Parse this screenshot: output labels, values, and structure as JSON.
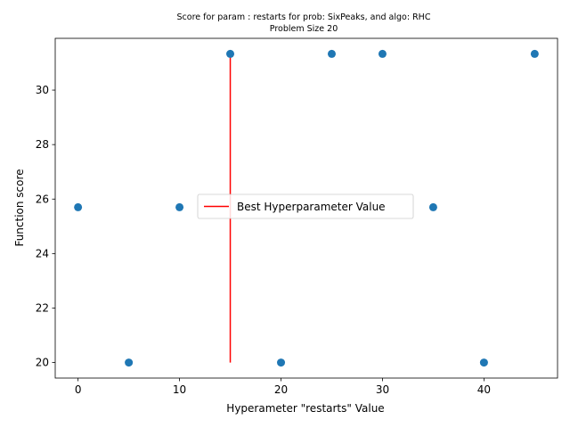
{
  "chart_data": {
    "type": "scatter",
    "title": "Score for param : restarts for prob: SixPeaks, and algo: RHC",
    "subtitle": "Problem Size 20",
    "xlabel": "Hyperameter \"restarts\" Value",
    "ylabel": "Function score",
    "xlim": [
      -2.25,
      47.25
    ],
    "ylim": [
      19.43,
      31.9
    ],
    "xticks": [
      0,
      10,
      20,
      30,
      40
    ],
    "yticks": [
      20,
      22,
      24,
      26,
      28,
      30
    ],
    "grid": false,
    "points": [
      {
        "x": 0,
        "y": 25.7
      },
      {
        "x": 5,
        "y": 20
      },
      {
        "x": 10,
        "y": 25.7
      },
      {
        "x": 15,
        "y": 31.33
      },
      {
        "x": 20,
        "y": 20
      },
      {
        "x": 25,
        "y": 31.33
      },
      {
        "x": 30,
        "y": 31.33
      },
      {
        "x": 35,
        "y": 25.7
      },
      {
        "x": 40,
        "y": 20
      },
      {
        "x": 45,
        "y": 31.33
      }
    ],
    "best_line": {
      "name": "Best Hyperparameter Value",
      "x": 15,
      "y_from": 20,
      "y_to": 31.33
    },
    "legend": {
      "entries": [
        "Best Hyperparameter Value"
      ],
      "placement": "center"
    },
    "colors": {
      "points": "#1f77b4",
      "best_line": "#ff0000"
    }
  }
}
